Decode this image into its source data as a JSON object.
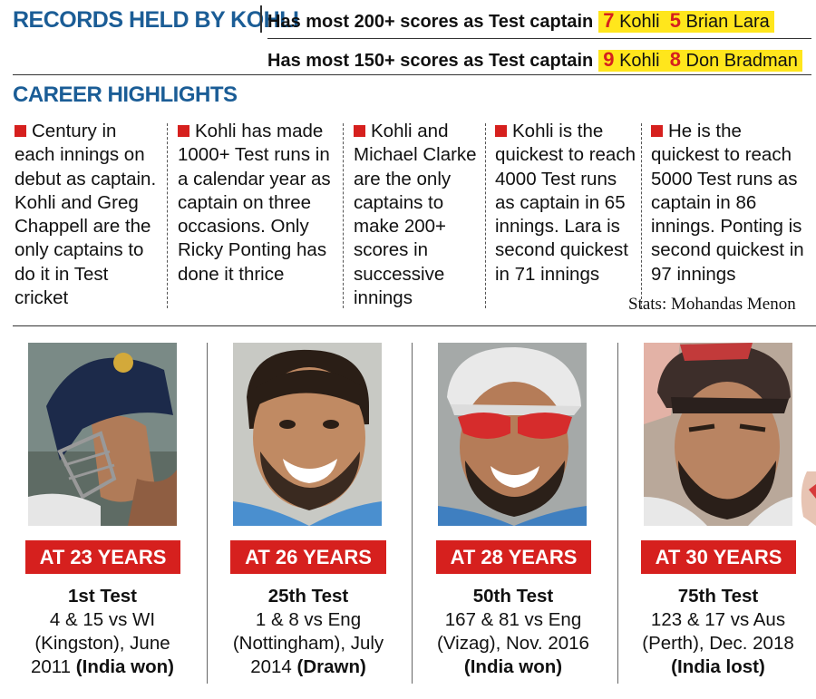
{
  "header": {
    "title": "RECORDS HELD BY KOHLI",
    "records": [
      {
        "text": "Has most 200+ scores as Test captain",
        "first_num": "7",
        "first_name": "Kohli",
        "second_num": "5",
        "second_name": "Brian Lara"
      },
      {
        "text": "Has most 150+ scores as Test captain",
        "first_num": "9",
        "first_name": "Kohli",
        "second_num": "8",
        "second_name": "Don Bradman"
      }
    ]
  },
  "career": {
    "title": "CAREER HIGHLIGHTS",
    "highlights": [
      "Century in each innings on debut as captain. Kohli and Greg Chappell are the only captains to do it in Test cricket",
      "Kohli has made 1000+ Test runs in a calendar year as captain on three occasions. Only Ricky Ponting has done it thrice",
      "Kohli and Michael Clarke are the only captains to make 200+ scores in successive innings",
      "Kohli is the quickest to reach 4000 Test runs as captain in 65 innings. Lara is second quickest in 71 innings",
      "He is the quickest to reach 5000 Test runs as captain in 86 innings. Ponting is second quickest in 97 innings"
    ],
    "credit": "Stats: Mohandas Menon"
  },
  "milestones": [
    {
      "age": "AT 23 YEARS",
      "test": "1st Test",
      "score": "4 & 15 vs WI",
      "venue": "(Kingston), June",
      "year": "2011",
      "result": "(India won)"
    },
    {
      "age": "AT 26 YEARS",
      "test": "25th Test",
      "score": "1 & 8 vs Eng",
      "venue": "(Nottingham), July",
      "year": "2014",
      "result": "(Drawn)"
    },
    {
      "age": "AT 28 YEARS",
      "test": "50th Test",
      "score": "167 & 81 vs Eng",
      "venue": "(Vizag), Nov. 2016",
      "year": "",
      "result": "(India won)"
    },
    {
      "age": "AT 30 YEARS",
      "test": "75th Test",
      "score": "123 & 17 vs Aus",
      "venue": "(Perth), Dec. 2018",
      "year": "",
      "result": "(India lost)"
    }
  ],
  "colors": {
    "accent_blue": "#1b5d96",
    "badge_red": "#d6201e",
    "highlight_yellow": "#ffe61c"
  }
}
